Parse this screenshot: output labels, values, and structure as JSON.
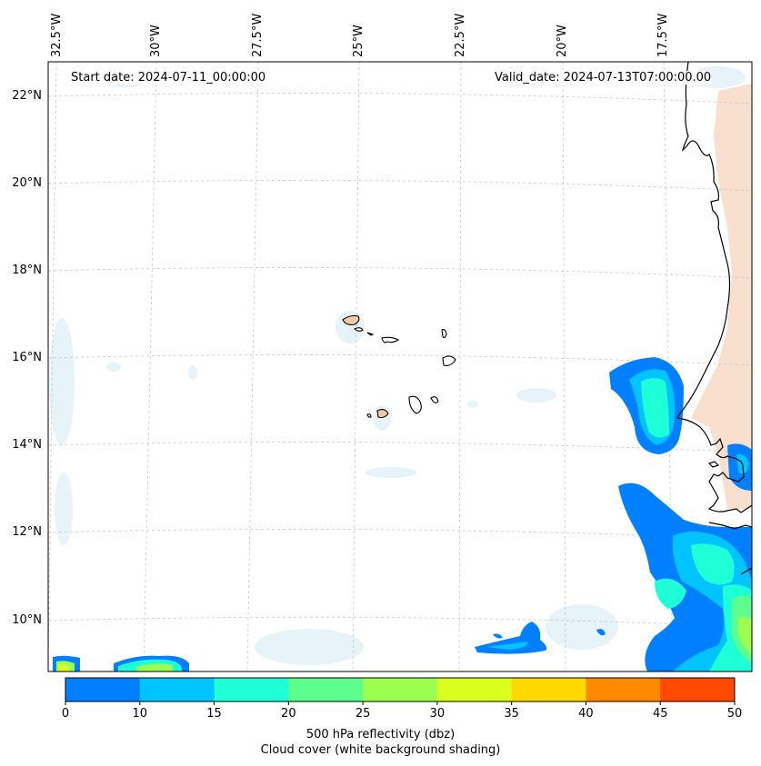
{
  "map": {
    "start_date": "Start date: 2024-07-11_00:00:00",
    "valid_date": "Valid_date: 2024-07-13T07:00:00.00",
    "longitude_labels": [
      "32.5°W",
      "30°W",
      "27.5°W",
      "25°W",
      "22.5°W",
      "20°W",
      "17.5°W"
    ],
    "latitude_labels": [
      "22°N",
      "20°N",
      "18°N",
      "16°N",
      "14°N",
      "12°N",
      "10°N"
    ],
    "colors": {
      "land_island": "#f7c8a4",
      "coastline": "#000000",
      "gridline": "#c8c8c8",
      "cloud_shading": "#dceef6",
      "land_shading": "#f4c4a4"
    }
  },
  "colorbar": {
    "ticks": [
      "0",
      "10",
      "15",
      "20",
      "25",
      "30",
      "35",
      "40",
      "45",
      "50"
    ],
    "colors": [
      "#0080ff",
      "#00c4ff",
      "#1effd8",
      "#5cff8e",
      "#9cff50",
      "#daff1e",
      "#ffd800",
      "#ff8a00",
      "#ff4a00"
    ],
    "label_line1": "500 hPa reflectivity (dbz)",
    "label_line2": "Cloud cover (white background shading)"
  }
}
